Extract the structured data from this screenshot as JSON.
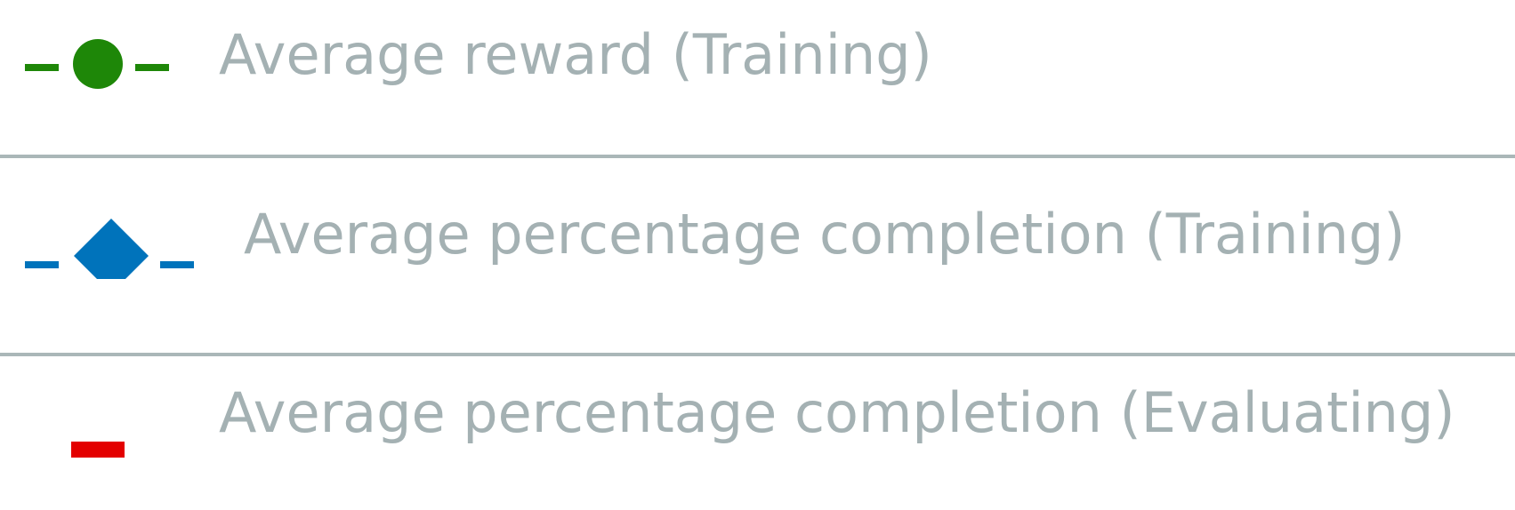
{
  "chart_data": {
    "type": "legend",
    "legend": [
      {
        "name": "Average reward (Training)",
        "marker": "circle",
        "color": "#1e8708"
      },
      {
        "name": "Average percentage completion (Training)",
        "marker": "diamond",
        "color": "#0073bb"
      },
      {
        "name": "Average percentage completion (Evaluating)",
        "marker": "square",
        "color": "#e30000"
      }
    ]
  },
  "style": {
    "label_color": "#a4b1b3",
    "divider_color": "#aab7b8"
  }
}
